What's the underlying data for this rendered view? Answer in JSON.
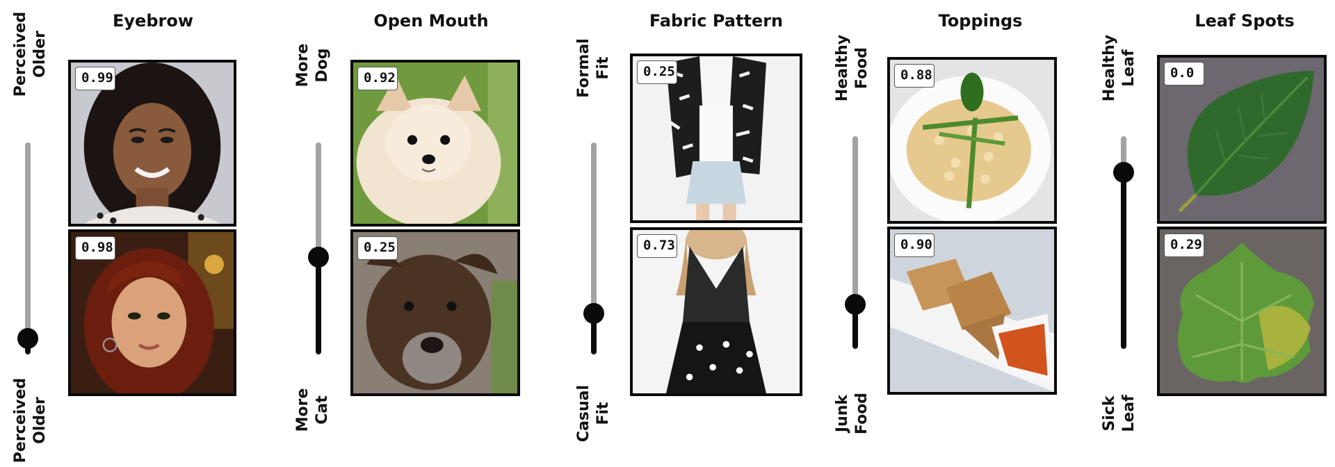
{
  "panels": [
    {
      "title": "Eyebrow",
      "top_label": [
        "Perceived",
        "Older"
      ],
      "bottom_label": [
        "Perceived",
        "Older"
      ],
      "slider_value": 0.92,
      "images": [
        {
          "subject": "smiling woman portrait",
          "score": "0.99"
        },
        {
          "subject": "woman with red-brown hair portrait",
          "score": "0.98"
        }
      ]
    },
    {
      "title": "Open Mouth",
      "top_label": [
        "More",
        "Dog"
      ],
      "bottom_label": [
        "More",
        "Cat"
      ],
      "slider_value": 0.54,
      "images": [
        {
          "subject": "fluffy cream pomeranian dog",
          "score": "0.92"
        },
        {
          "subject": "brown pit bull dog with grey muzzle",
          "score": "0.25"
        }
      ]
    },
    {
      "title": "Fabric Pattern",
      "top_label": [
        "Formal",
        "Fit"
      ],
      "bottom_label": [
        "Casual",
        "Fit"
      ],
      "slider_value": 0.81,
      "images": [
        {
          "subject": "patterned black-and-white blazer with denim skirt",
          "score": "0.25"
        },
        {
          "subject": "black halter dress with polka dots",
          "score": "0.73"
        }
      ]
    },
    {
      "title": "Toppings",
      "top_label": [
        "Healthy",
        "Food"
      ],
      "bottom_label": [
        "Junk",
        "Food"
      ],
      "slider_value": 0.79,
      "images": [
        {
          "subject": "risotto with asparagus and basil",
          "score": "0.88"
        },
        {
          "subject": "fried spring rolls with dipping sauce",
          "score": "0.90"
        }
      ]
    },
    {
      "title": "Leaf Spots",
      "top_label": [
        "Healthy",
        "Leaf"
      ],
      "bottom_label": [
        "Sick",
        "Leaf"
      ],
      "slider_value": 0.16,
      "images": [
        {
          "subject": "healthy green leaf on grey background",
          "score": "0.0"
        },
        {
          "subject": "spotted yellow-green leaf on grey background",
          "score": "0.29"
        }
      ]
    }
  ]
}
